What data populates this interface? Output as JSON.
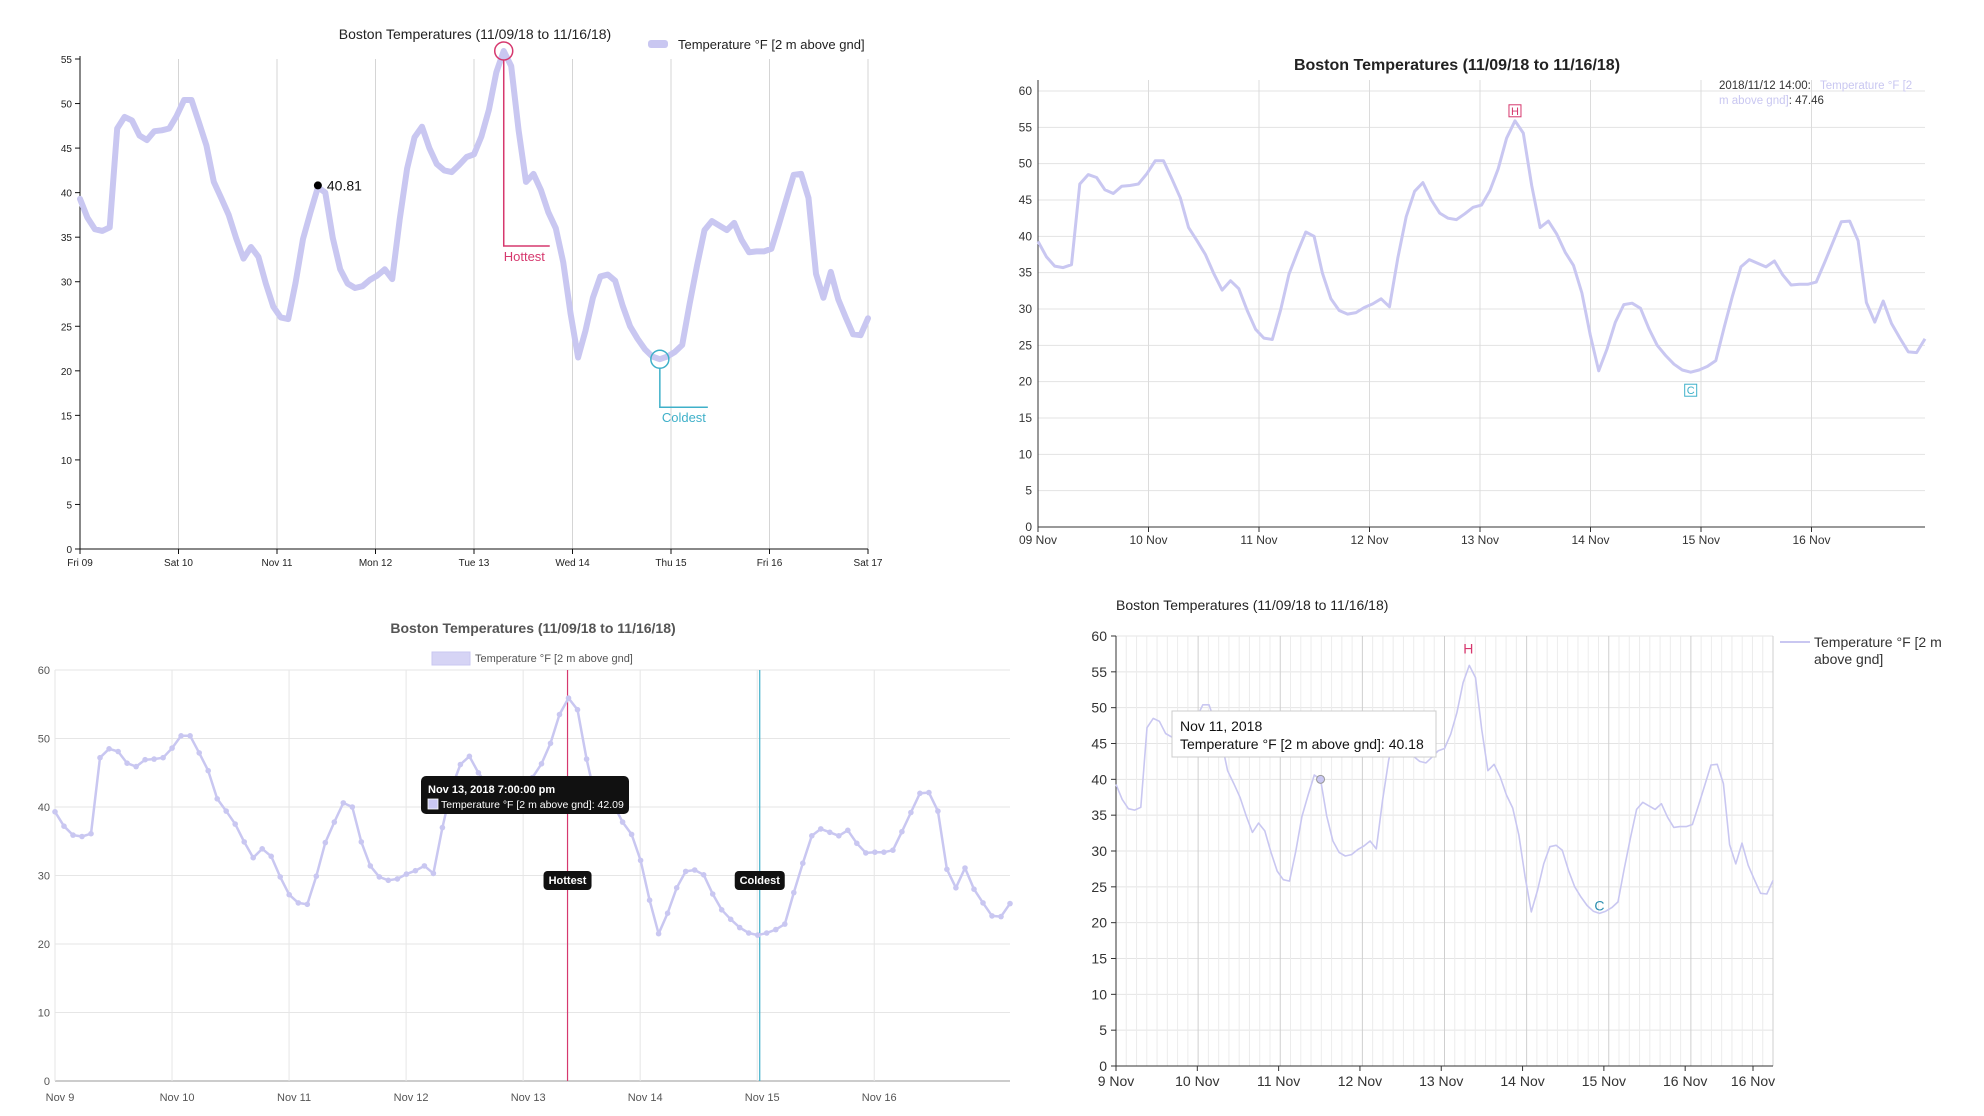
{
  "series_color": "#c9c7f1",
  "hot_color": "#d6386e",
  "cold_color": "#3fb0c9",
  "temps": [
    39.3,
    37.2,
    35.9,
    35.7,
    36.1,
    47.2,
    48.5,
    48.1,
    46.4,
    45.9,
    46.9,
    47.0,
    47.2,
    48.6,
    50.4,
    50.4,
    47.9,
    45.3,
    41.2,
    39.4,
    37.5,
    34.9,
    32.6,
    33.9,
    32.8,
    29.8,
    27.2,
    26.0,
    25.8,
    29.9,
    34.8,
    37.8,
    40.6,
    40.0,
    34.9,
    31.4,
    29.8,
    29.3,
    29.5,
    30.2,
    30.7,
    31.4,
    30.3,
    37.0,
    42.7,
    46.2,
    47.4,
    45.0,
    43.2,
    42.5,
    42.3,
    43.1,
    44.0,
    44.3,
    46.3,
    49.3,
    53.5,
    55.9,
    54.2,
    47.0,
    41.2,
    42.1,
    40.3,
    37.8,
    36.0,
    32.2,
    26.4,
    21.5,
    24.5,
    28.2,
    30.6,
    30.8,
    30.1,
    27.3,
    25.0,
    23.6,
    22.4,
    21.6,
    21.3,
    21.6,
    22.1,
    22.9,
    27.5,
    31.8,
    35.8,
    36.8,
    36.3,
    35.8,
    36.6,
    34.7,
    33.3,
    33.4,
    33.4,
    33.7,
    36.4,
    39.2,
    42.0,
    42.1,
    39.4,
    30.9,
    28.2,
    31.1,
    28.0,
    26.0,
    24.1,
    24.0,
    25.9
  ],
  "chart_data": [
    {
      "type": "line",
      "title": "Boston Temperatures (11/09/18 to 11/16/18)",
      "legend": "Temperature °F [2 m above gnd]",
      "ylim": [
        0,
        55
      ],
      "yticks": [
        "0",
        "5",
        "10",
        "15",
        "20",
        "25",
        "30",
        "35",
        "40",
        "45",
        "50",
        "55"
      ],
      "xticks": [
        "Fri 09",
        "Sat 10",
        "Nov 11",
        "Mon 12",
        "Tue 13",
        "Wed 14",
        "Thu 15",
        "Fri 16",
        "Sat 17"
      ],
      "annotations": {
        "hottest_label": "Hottest",
        "coldest_label": "Coldest",
        "point_label": "40.81",
        "point_value": 40.81
      }
    },
    {
      "type": "line",
      "title": "Boston Temperatures (11/09/18 to 11/16/18)",
      "ylim": [
        0,
        60
      ],
      "yticks": [
        "0",
        "5",
        "10",
        "15",
        "20",
        "25",
        "30",
        "35",
        "40",
        "45",
        "50",
        "55",
        "60"
      ],
      "xticks": [
        "09 Nov",
        "10 Nov",
        "11 Nov",
        "12 Nov",
        "13 Nov",
        "14 Nov",
        "15 Nov",
        "16 Nov"
      ],
      "markers": {
        "hot": "H",
        "cold": "C"
      },
      "tooltip": {
        "time": "2018/11/12 14:00:",
        "series": "Temperature °F [2 m above gnd]",
        "value": ": 47.46"
      }
    },
    {
      "type": "line",
      "title": "Boston Temperatures (11/09/18 to 11/16/18)",
      "legend": "Temperature °F [2 m above gnd]",
      "ylim": [
        0,
        60
      ],
      "yticks": [
        "0",
        "10",
        "20",
        "30",
        "40",
        "50",
        "60"
      ],
      "xticks": [
        "Nov 9",
        "Nov 10",
        "Nov 11",
        "Nov 12",
        "Nov 13",
        "Nov 14",
        "Nov 15",
        "Nov 16"
      ],
      "lines": {
        "hottest_label": "Hottest",
        "coldest_label": "Coldest"
      },
      "tooltip": {
        "title": "Nov 13, 2018 7:00:00 pm",
        "body": "Temperature °F [2 m above gnd]: 42.09"
      }
    },
    {
      "type": "line",
      "title": "Boston Temperatures (11/09/18 to 11/16/18)",
      "legend_line1": "Temperature °F [2 m",
      "legend_line2": "above gnd]",
      "ylim": [
        0,
        60
      ],
      "yticks": [
        "0",
        "5",
        "10",
        "15",
        "20",
        "25",
        "30",
        "35",
        "40",
        "45",
        "50",
        "55",
        "60"
      ],
      "xticks": [
        "9 Nov",
        "10 Nov",
        "11 Nov",
        "12 Nov",
        "13 Nov",
        "14 Nov",
        "15 Nov",
        "16 Nov",
        "16 Nov"
      ],
      "markers": {
        "hot": "H",
        "cold": "C"
      },
      "tooltip": {
        "title": "Nov 11, 2018",
        "body": "Temperature °F [2 m above gnd]: 40.18"
      }
    }
  ]
}
